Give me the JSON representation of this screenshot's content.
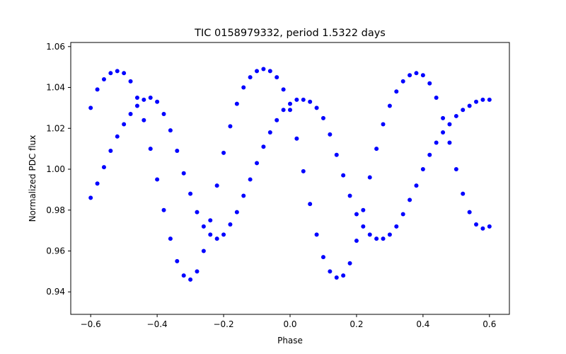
{
  "chart_data": {
    "type": "scatter",
    "title": "TIC 0158979332, period 1.5322 days",
    "xlabel": "Phase",
    "ylabel": "Normalized PDC flux",
    "xlim": [
      -0.66,
      0.66
    ],
    "ylim": [
      0.929,
      1.062
    ],
    "x_ticks": [
      -0.6,
      -0.4,
      -0.2,
      0.0,
      0.2,
      0.4,
      0.6
    ],
    "x_tick_labels": [
      "−0.6",
      "−0.4",
      "−0.2",
      "0.0",
      "0.2",
      "0.4",
      "0.6"
    ],
    "y_ticks": [
      0.94,
      0.96,
      0.98,
      1.0,
      1.02,
      1.04,
      1.06
    ],
    "y_tick_labels": [
      "0.94",
      "0.96",
      "0.98",
      "1.00",
      "1.02",
      "1.04",
      "1.06"
    ],
    "grid": false,
    "marker_color": "#0000ff",
    "series": [
      {
        "name": "",
        "x": [
          -0.6,
          -0.58,
          -0.56,
          -0.54,
          -0.52,
          -0.5,
          -0.48,
          -0.46,
          -0.44,
          -0.42,
          -0.4,
          -0.38,
          -0.36,
          -0.34,
          -0.32,
          -0.3,
          -0.28,
          -0.26,
          -0.24,
          -0.22,
          -0.2,
          -0.18,
          -0.16,
          -0.14,
          -0.12,
          -0.1,
          -0.08,
          -0.06,
          -0.04,
          -0.02,
          0.0,
          0.02,
          0.04,
          0.06,
          0.08,
          0.1,
          0.12,
          0.14,
          0.16,
          0.18,
          0.2,
          0.22,
          0.24,
          0.26,
          0.28,
          0.3,
          0.32,
          0.34,
          0.36,
          0.38,
          0.4,
          0.42,
          0.44,
          0.46,
          0.48,
          0.5,
          0.52,
          0.54,
          0.56,
          0.58,
          0.6
        ],
        "y": [
          0.986,
          0.993,
          1.001,
          1.009,
          1.016,
          1.022,
          1.027,
          1.031,
          1.034,
          1.035,
          1.033,
          1.027,
          1.019,
          1.009,
          0.998,
          0.988,
          0.979,
          0.972,
          0.968,
          0.966,
          0.968,
          0.973,
          0.979,
          0.987,
          0.995,
          1.003,
          1.011,
          1.018,
          1.024,
          1.029,
          1.032,
          1.034,
          1.034,
          1.033,
          1.03,
          1.025,
          1.017,
          1.007,
          0.997,
          0.987,
          0.978,
          0.972,
          0.968,
          0.966,
          0.966,
          0.968,
          0.972,
          0.978,
          0.985,
          0.992,
          1.0,
          1.007,
          1.013,
          1.018,
          1.022,
          1.026,
          1.029,
          1.031,
          1.033,
          1.034,
          1.034
        ]
      },
      {
        "name": "",
        "x": [
          -0.6,
          -0.58,
          -0.56,
          -0.54,
          -0.52,
          -0.5,
          -0.48,
          -0.46,
          -0.44,
          -0.42,
          -0.4,
          -0.38,
          -0.36,
          -0.34,
          -0.32,
          -0.3,
          -0.28,
          -0.26,
          -0.24,
          -0.22,
          -0.2,
          -0.18,
          -0.16,
          -0.14,
          -0.12,
          -0.1,
          -0.08,
          -0.06,
          -0.04,
          -0.02,
          0.0,
          0.02,
          0.04,
          0.06,
          0.08,
          0.1,
          0.12,
          0.14,
          0.16,
          0.18,
          0.2,
          0.22,
          0.24,
          0.26,
          0.28,
          0.3,
          0.32,
          0.34,
          0.36,
          0.38,
          0.4,
          0.42,
          0.44,
          0.46,
          0.48,
          0.5,
          0.52,
          0.54,
          0.56,
          0.58,
          0.6
        ],
        "y": [
          1.03,
          1.039,
          1.044,
          1.047,
          1.048,
          1.047,
          1.043,
          1.035,
          1.024,
          1.01,
          0.995,
          0.98,
          0.966,
          0.955,
          0.948,
          0.946,
          0.95,
          0.96,
          0.975,
          0.992,
          1.008,
          1.021,
          1.032,
          1.04,
          1.045,
          1.048,
          1.049,
          1.048,
          1.045,
          1.039,
          1.029,
          1.015,
          0.999,
          0.983,
          0.968,
          0.957,
          0.95,
          0.947,
          0.948,
          0.954,
          0.965,
          0.98,
          0.996,
          1.01,
          1.022,
          1.031,
          1.038,
          1.043,
          1.046,
          1.047,
          1.046,
          1.042,
          1.035,
          1.025,
          1.013,
          1.0,
          0.988,
          0.979,
          0.973,
          0.971,
          0.972
        ]
      }
    ]
  }
}
